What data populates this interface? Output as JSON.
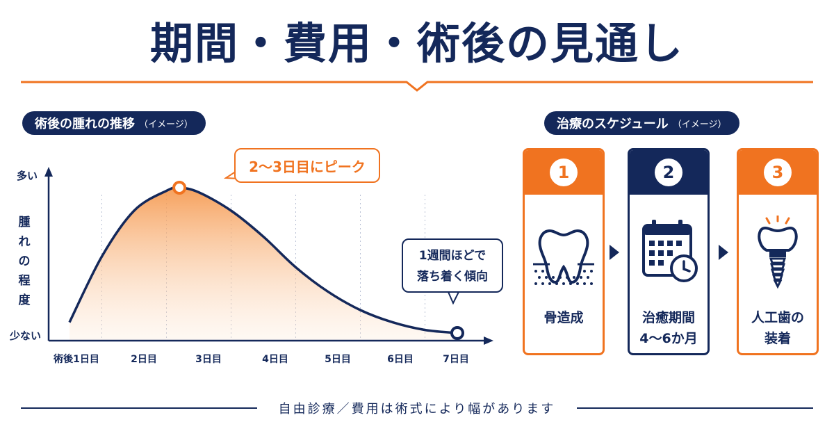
{
  "title": "期間・費用・術後の見通し",
  "swelling_section": {
    "heading": "術後の腫れの推移",
    "heading_note": "（イメージ）",
    "y_high_label": "多い",
    "y_low_label": "少ない",
    "y_axis_label": "腫れの程度",
    "peak_callout": "2〜3日目にピーク",
    "settle_callout_line1": "1週間ほどで",
    "settle_callout_line2": "落ち着く傾向"
  },
  "chart_data": {
    "type": "area",
    "x_tick_labels": [
      "術後1日目",
      "2日目",
      "3日目",
      "4日目",
      "5日目",
      "6日目",
      "7日目"
    ],
    "x": [
      1,
      1.5,
      2,
      2.5,
      2.7,
      3,
      3.5,
      4,
      4.5,
      5,
      5.5,
      6,
      6.5,
      7
    ],
    "y": [
      0.12,
      0.55,
      0.85,
      0.98,
      1.0,
      0.97,
      0.85,
      0.68,
      0.48,
      0.32,
      0.2,
      0.12,
      0.07,
      0.05
    ],
    "y_range_labels": [
      "少ない",
      "多い"
    ],
    "markers": [
      {
        "x": 2.7,
        "y": 1.0,
        "color": "#f07320"
      },
      {
        "x": 7,
        "y": 0.05,
        "color": "#14285a"
      }
    ],
    "line_color": "#14285a",
    "fill_color": "#f5964a",
    "grid": "vertical dotted"
  },
  "schedule_section": {
    "heading": "治療のスケジュール",
    "heading_note": "（イメージ）",
    "steps": [
      {
        "number": "1",
        "label_line1": "骨造成",
        "label_line2": "",
        "color": "#f07320",
        "icon": "tooth-bone-icon"
      },
      {
        "number": "2",
        "label_line1": "治癒期間",
        "label_line2": "4〜6か月",
        "color": "#14285a",
        "icon": "calendar-clock-icon"
      },
      {
        "number": "3",
        "label_line1": "人工歯の",
        "label_line2": "装着",
        "color": "#f07320",
        "icon": "dental-implant-icon"
      }
    ]
  },
  "footer": "自由診療／費用は術式により幅があります",
  "colors": {
    "navy": "#14285a",
    "orange": "#f07320"
  }
}
